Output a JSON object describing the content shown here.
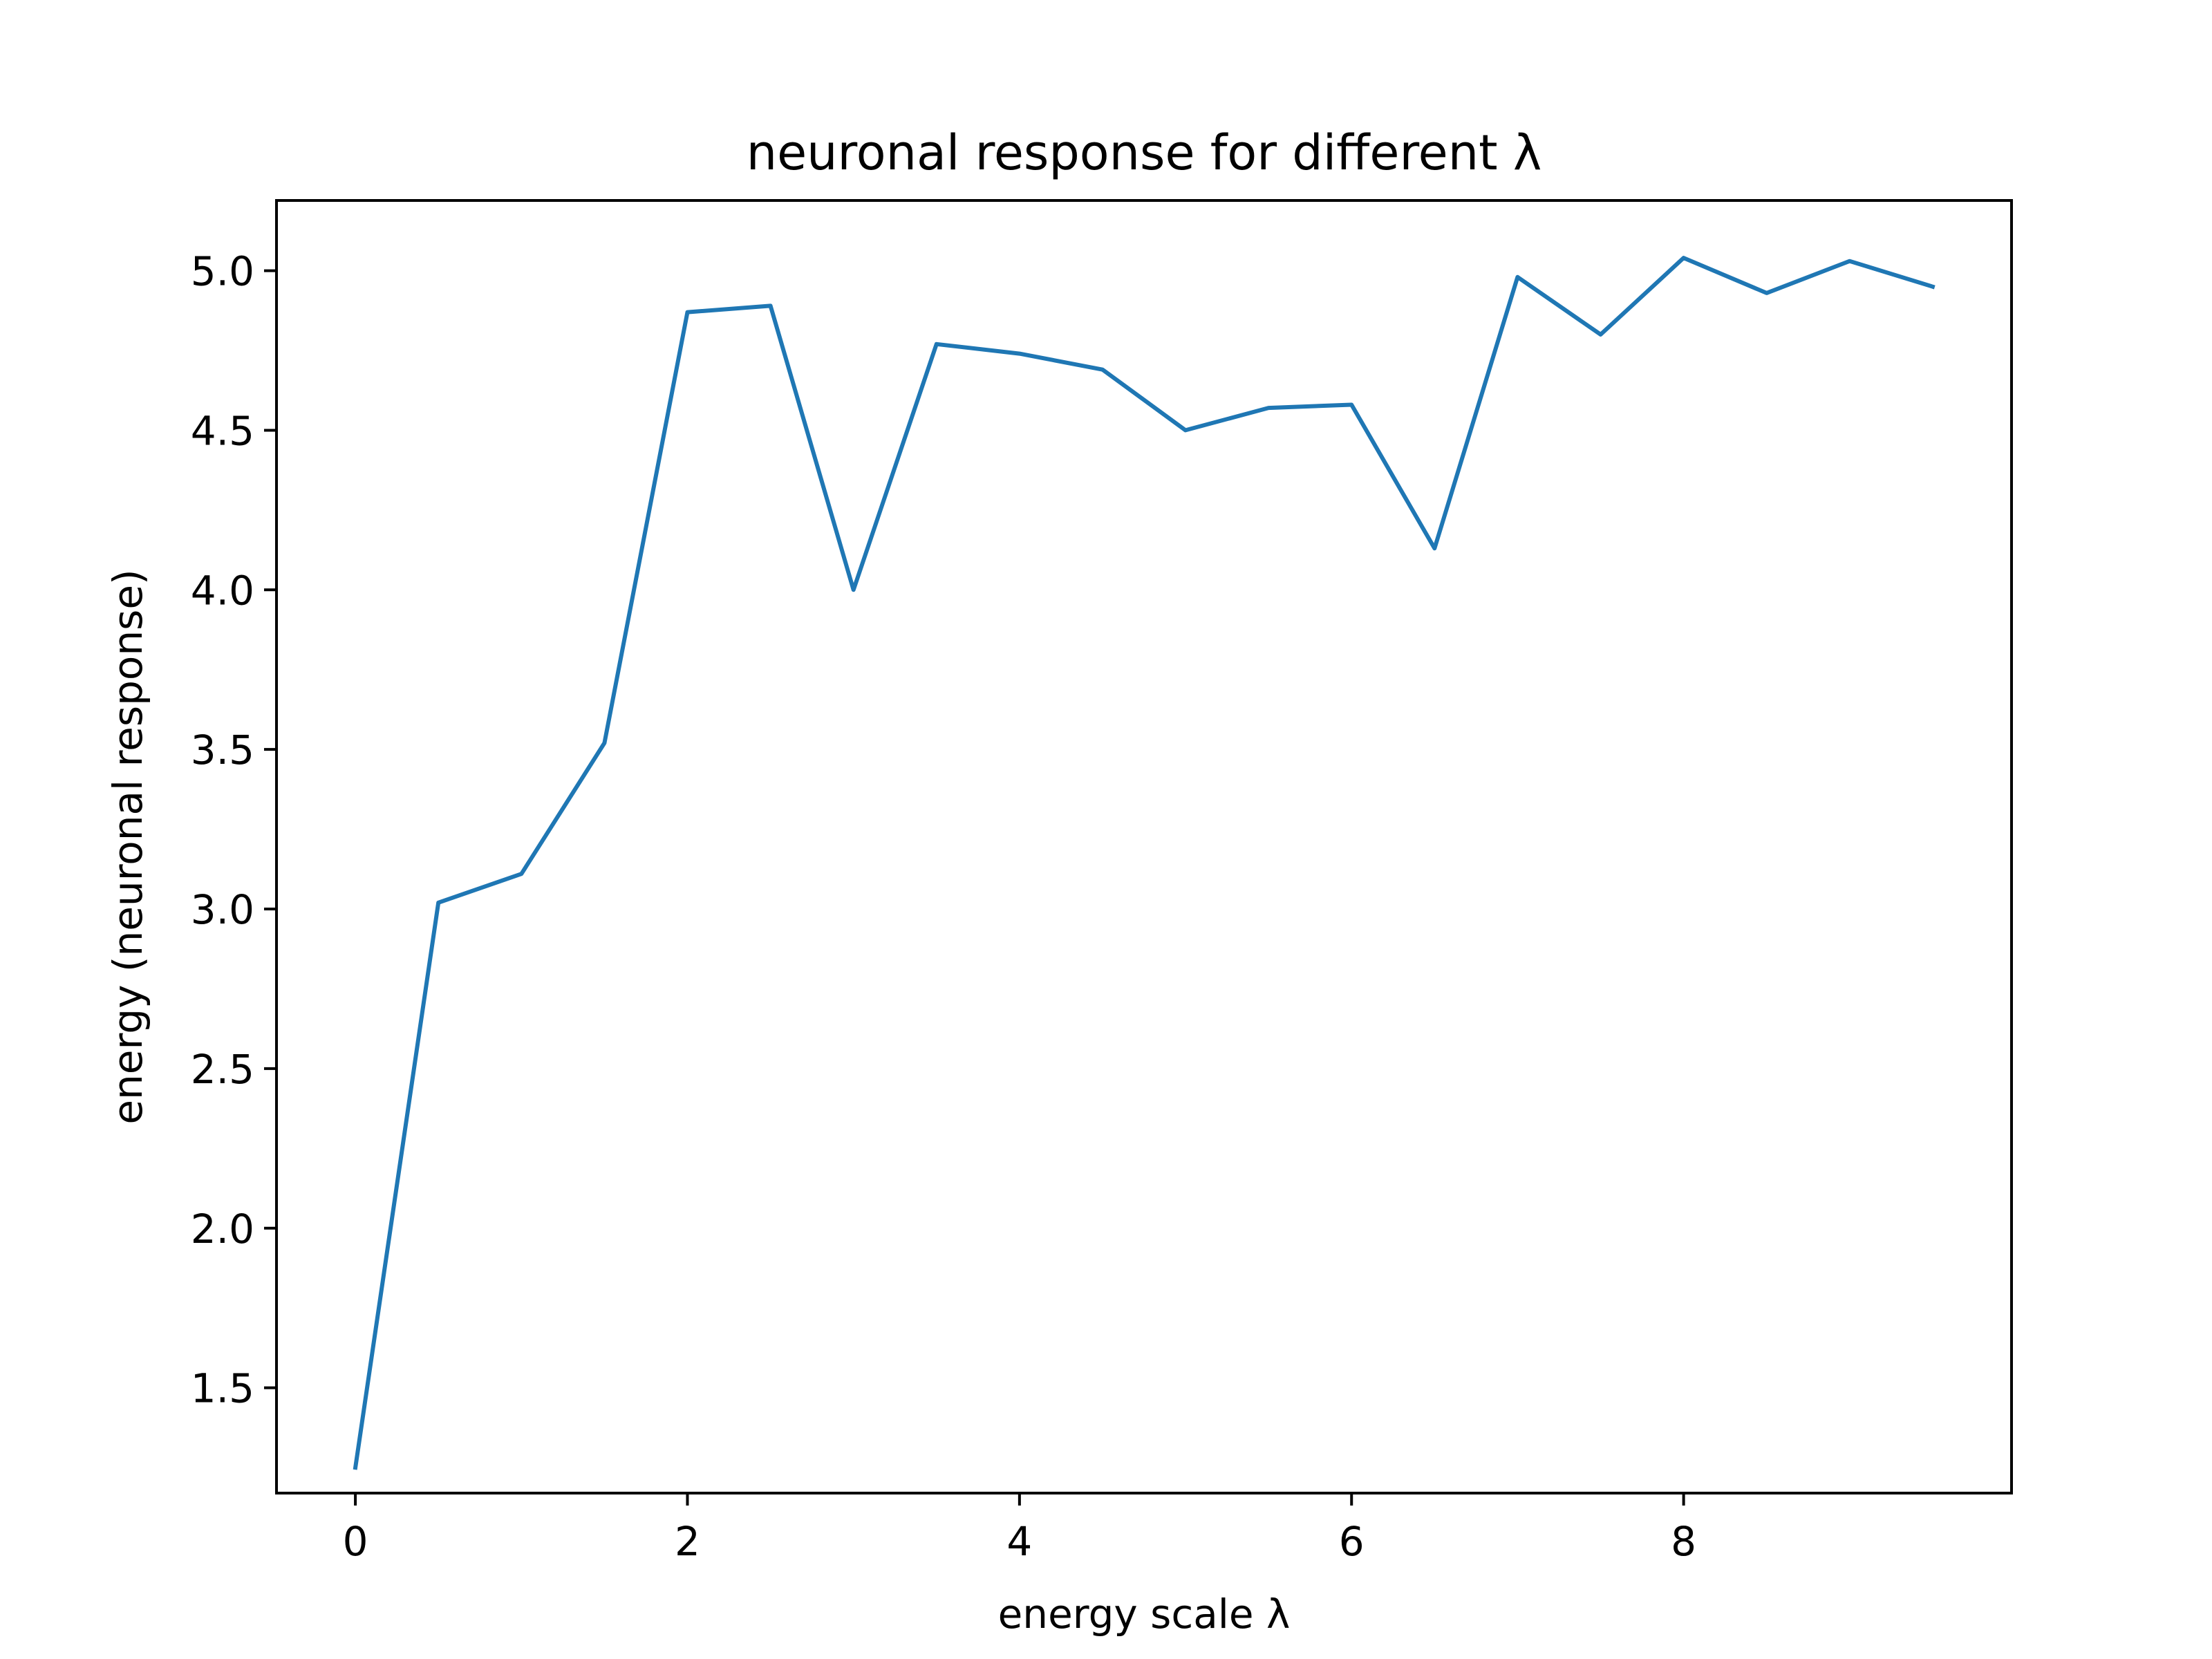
{
  "chart_data": {
    "type": "line",
    "title": "neuronal response for different λ",
    "xlabel": "energy scale λ",
    "ylabel": "energy (neuronal response)",
    "xlim": [
      -0.475,
      9.975
    ],
    "ylim": [
      1.17,
      5.22
    ],
    "xticks": [
      0,
      2,
      4,
      6,
      8
    ],
    "yticks": [
      1.5,
      2.0,
      2.5,
      3.0,
      3.5,
      4.0,
      4.5,
      5.0
    ],
    "xtick_labels": [
      "0",
      "2",
      "4",
      "6",
      "8"
    ],
    "ytick_labels": [
      "1.5",
      "2.0",
      "2.5",
      "3.0",
      "3.5",
      "4.0",
      "4.5",
      "5.0"
    ],
    "grid": false,
    "legend": "none",
    "series": [
      {
        "color": "#1f77b4",
        "x": [
          0,
          0.5,
          1,
          1.5,
          2,
          2.5,
          3,
          3.5,
          4,
          4.5,
          5,
          5.5,
          6,
          6.5,
          7,
          7.5,
          8,
          8.5,
          9,
          9.5
        ],
        "y": [
          1.25,
          3.02,
          3.11,
          3.52,
          4.87,
          4.89,
          4.0,
          4.77,
          4.74,
          4.69,
          4.5,
          4.57,
          4.58,
          4.13,
          4.98,
          4.8,
          5.04,
          4.93,
          5.03,
          4.95
        ]
      }
    ]
  }
}
